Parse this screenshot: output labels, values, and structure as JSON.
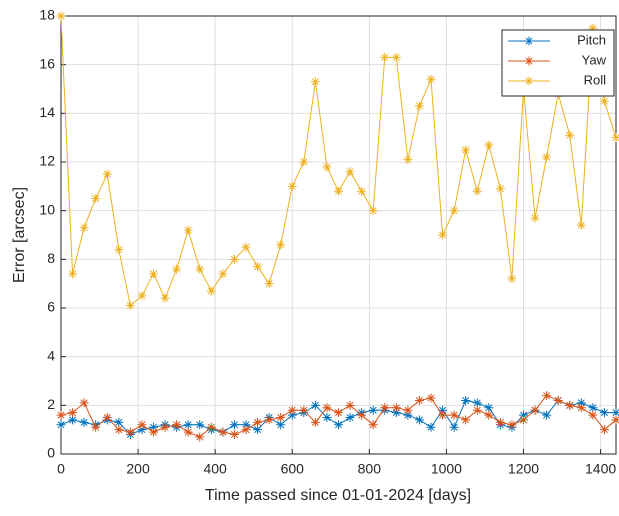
{
  "chart_data": {
    "type": "line",
    "xlabel": "Time passed since 01-01-2024 [days]",
    "ylabel": "Error [arcsec]",
    "x": [
      0,
      30,
      60,
      90,
      120,
      150,
      180,
      210,
      240,
      270,
      300,
      330,
      360,
      390,
      420,
      450,
      480,
      510,
      540,
      570,
      600,
      630,
      660,
      690,
      720,
      750,
      780,
      810,
      840,
      870,
      900,
      930,
      960,
      990,
      1020,
      1050,
      1080,
      1110,
      1140,
      1170,
      1200,
      1230,
      1260,
      1290,
      1320,
      1350,
      1380,
      1410,
      1440
    ],
    "series": [
      {
        "name": "Pitch",
        "color": "#0072BD",
        "values": [
          1.2,
          1.4,
          1.3,
          1.2,
          1.4,
          1.3,
          0.8,
          1.0,
          1.1,
          1.2,
          1.1,
          1.2,
          1.2,
          1.0,
          0.9,
          1.2,
          1.2,
          1.0,
          1.5,
          1.2,
          1.6,
          1.7,
          2.0,
          1.5,
          1.2,
          1.5,
          1.7,
          1.8,
          1.8,
          1.7,
          1.6,
          1.4,
          1.1,
          1.8,
          1.1,
          2.2,
          2.1,
          1.9,
          1.2,
          1.1,
          1.6,
          1.8,
          1.6,
          2.2,
          2.0,
          2.1,
          1.9,
          1.7,
          1.7
        ]
      },
      {
        "name": "Yaw",
        "color": "#D95319",
        "values": [
          1.6,
          1.7,
          2.1,
          1.1,
          1.5,
          1.0,
          0.9,
          1.2,
          0.9,
          1.1,
          1.2,
          0.9,
          0.7,
          1.1,
          0.9,
          0.8,
          1.0,
          1.3,
          1.4,
          1.5,
          1.8,
          1.8,
          1.3,
          1.9,
          1.7,
          2.0,
          1.6,
          1.2,
          1.9,
          1.9,
          1.8,
          2.2,
          2.3,
          1.6,
          1.6,
          1.4,
          1.8,
          1.6,
          1.3,
          1.2,
          1.4,
          1.8,
          2.4,
          2.2,
          2.0,
          1.9,
          1.6,
          1.0,
          1.4
        ]
      },
      {
        "name": "Roll",
        "color": "#EDB120",
        "values": [
          18.0,
          7.4,
          9.3,
          10.5,
          11.5,
          8.4,
          6.1,
          6.5,
          7.4,
          6.4,
          7.6,
          9.2,
          7.6,
          6.7,
          7.4,
          8.0,
          8.5,
          7.7,
          7.0,
          8.6,
          11.0,
          12.0,
          15.3,
          11.8,
          10.8,
          11.6,
          10.8,
          10.0,
          16.3,
          16.3,
          12.1,
          14.3,
          15.4,
          9.0,
          10.0,
          12.5,
          10.8,
          12.7,
          10.9,
          7.2,
          15.0,
          9.7,
          12.2,
          14.8,
          13.1,
          9.4,
          17.5,
          14.5,
          13.0
        ]
      }
    ],
    "xlim": [
      0,
      1440
    ],
    "xticks": [
      0,
      200,
      400,
      600,
      800,
      1000,
      1200,
      1400
    ],
    "ylim": [
      0,
      18
    ],
    "yticks": [
      0,
      2,
      4,
      6,
      8,
      10,
      12,
      14,
      16,
      18
    ],
    "grid": true,
    "legend": "top-right"
  }
}
